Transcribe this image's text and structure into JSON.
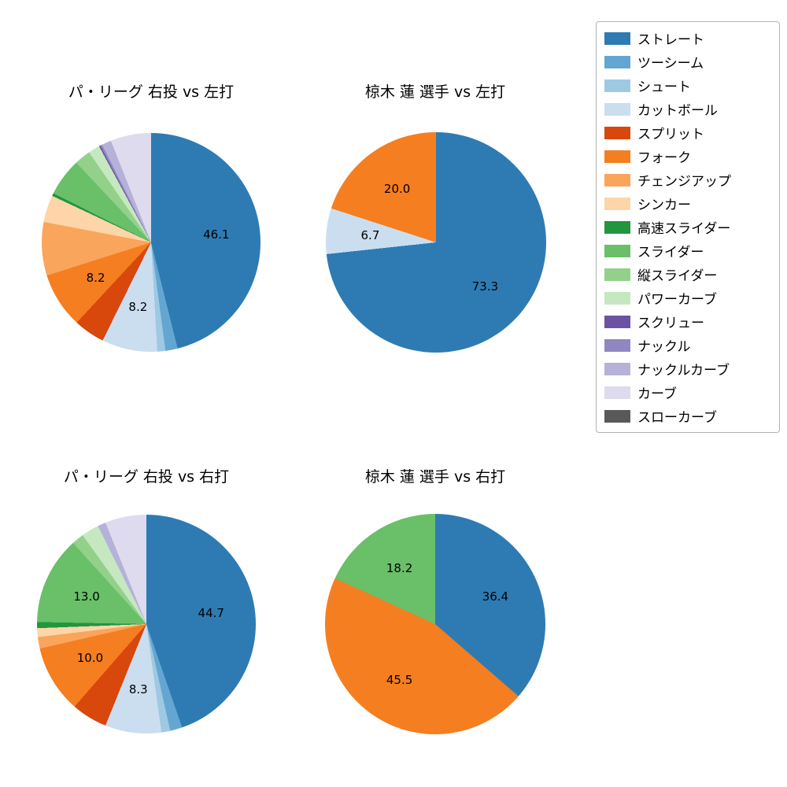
{
  "legend": {
    "items": [
      {
        "label": "ストレート",
        "color": "#2e7bb4"
      },
      {
        "label": "ツーシーム",
        "color": "#64a6d2"
      },
      {
        "label": "シュート",
        "color": "#9ec9e2"
      },
      {
        "label": "カットボール",
        "color": "#cadef0"
      },
      {
        "label": "スプリット",
        "color": "#d8470c"
      },
      {
        "label": "フォーク",
        "color": "#f57e20"
      },
      {
        "label": "チェンジアップ",
        "color": "#faa55c"
      },
      {
        "label": "シンカー",
        "color": "#fdd5a9"
      },
      {
        "label": "高速スライダー",
        "color": "#21963f"
      },
      {
        "label": "スライダー",
        "color": "#6abf69"
      },
      {
        "label": "縦スライダー",
        "color": "#93d18b"
      },
      {
        "label": "パワーカーブ",
        "color": "#c5e8c0"
      },
      {
        "label": "スクリュー",
        "color": "#6b52a3"
      },
      {
        "label": "ナックル",
        "color": "#9187c0"
      },
      {
        "label": "ナックルカーブ",
        "color": "#b5b1d8"
      },
      {
        "label": "カーブ",
        "color": "#dddbed"
      },
      {
        "label": "スローカーブ",
        "color": "#595959"
      }
    ]
  },
  "chart_data": [
    {
      "type": "pie",
      "title": "パ・リーグ 右投 vs 左打",
      "start_angle": "top",
      "direction": "clockwise",
      "slices": [
        {
          "name": "ストレート",
          "value": 46.1,
          "label": "46.1"
        },
        {
          "name": "ツーシーム",
          "value": 1.8,
          "label": ""
        },
        {
          "name": "シュート",
          "value": 1.2,
          "label": ""
        },
        {
          "name": "カットボール",
          "value": 8.2,
          "label": "8.2"
        },
        {
          "name": "スプリット",
          "value": 4.6,
          "label": ""
        },
        {
          "name": "フォーク",
          "value": 8.2,
          "label": "8.2"
        },
        {
          "name": "チェンジアップ",
          "value": 7.9,
          "label": ""
        },
        {
          "name": "シンカー",
          "value": 4.0,
          "label": ""
        },
        {
          "name": "高速スライダー",
          "value": 0.4,
          "label": ""
        },
        {
          "name": "スライダー",
          "value": 5.6,
          "label": ""
        },
        {
          "name": "縦スライダー",
          "value": 2.4,
          "label": ""
        },
        {
          "name": "パワーカーブ",
          "value": 1.7,
          "label": ""
        },
        {
          "name": "スクリュー",
          "value": 0.2,
          "label": ""
        },
        {
          "name": "ナックル",
          "value": 0.3,
          "label": ""
        },
        {
          "name": "ナックルカーブ",
          "value": 1.4,
          "label": ""
        },
        {
          "name": "カーブ",
          "value": 6.0,
          "label": ""
        }
      ]
    },
    {
      "type": "pie",
      "title": "椋木 蓮 選手 vs 左打",
      "start_angle": "top",
      "direction": "clockwise",
      "slices": [
        {
          "name": "ストレート",
          "value": 73.3,
          "label": "73.3"
        },
        {
          "name": "カットボール",
          "value": 6.7,
          "label": "6.7"
        },
        {
          "name": "フォーク",
          "value": 20.0,
          "label": "20.0"
        }
      ]
    },
    {
      "type": "pie",
      "title": "パ・リーグ 右投 vs 右打",
      "start_angle": "top",
      "direction": "clockwise",
      "slices": [
        {
          "name": "ストレート",
          "value": 44.7,
          "label": "44.7"
        },
        {
          "name": "ツーシーム",
          "value": 1.8,
          "label": ""
        },
        {
          "name": "シュート",
          "value": 1.3,
          "label": ""
        },
        {
          "name": "カットボール",
          "value": 8.3,
          "label": "8.3"
        },
        {
          "name": "スプリット",
          "value": 5.3,
          "label": ""
        },
        {
          "name": "フォーク",
          "value": 10.0,
          "label": "10.0"
        },
        {
          "name": "チェンジアップ",
          "value": 1.7,
          "label": ""
        },
        {
          "name": "シンカー",
          "value": 1.3,
          "label": ""
        },
        {
          "name": "高速スライダー",
          "value": 0.9,
          "label": ""
        },
        {
          "name": "スライダー",
          "value": 13.0,
          "label": "13.0"
        },
        {
          "name": "縦スライダー",
          "value": 1.8,
          "label": ""
        },
        {
          "name": "パワーカーブ",
          "value": 2.6,
          "label": ""
        },
        {
          "name": "ナックルカーブ",
          "value": 1.2,
          "label": ""
        },
        {
          "name": "カーブ",
          "value": 6.1,
          "label": ""
        }
      ]
    },
    {
      "type": "pie",
      "title": "椋木 蓮 選手 vs 右打",
      "start_angle": "top",
      "direction": "clockwise",
      "slices": [
        {
          "name": "ストレート",
          "value": 36.4,
          "label": "36.4"
        },
        {
          "name": "フォーク",
          "value": 45.5,
          "label": "45.5"
        },
        {
          "name": "スライダー",
          "value": 18.2,
          "label": "18.2"
        }
      ]
    }
  ]
}
